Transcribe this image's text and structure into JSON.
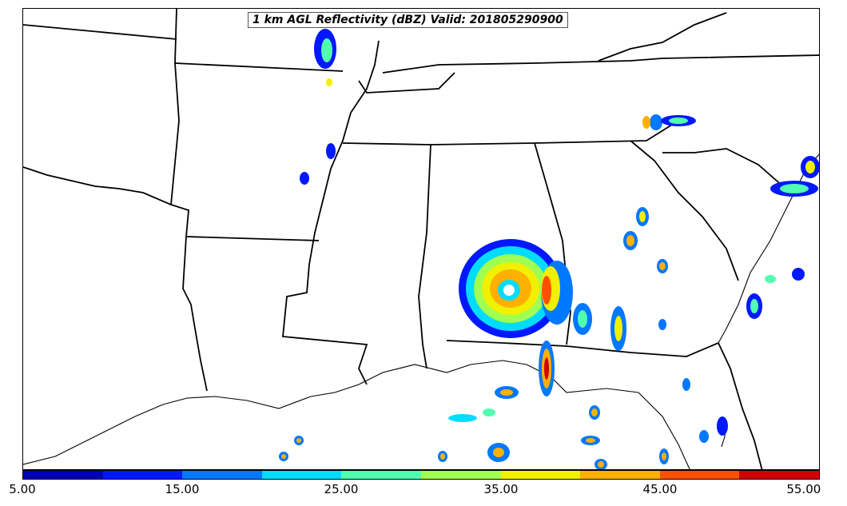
{
  "title": "1 km AGL Reflectivity (dBZ) Valid: 201805290900",
  "colorbar": {
    "ticks": [
      "5.00",
      "15.00",
      "25.00",
      "35.00",
      "45.00",
      "55.00"
    ],
    "colors": [
      "#0000b4",
      "#0018ff",
      "#0078ff",
      "#00dcff",
      "#50ffb0",
      "#a0ff50",
      "#f0f000",
      "#ffb000",
      "#ff5000",
      "#d00000"
    ]
  }
}
